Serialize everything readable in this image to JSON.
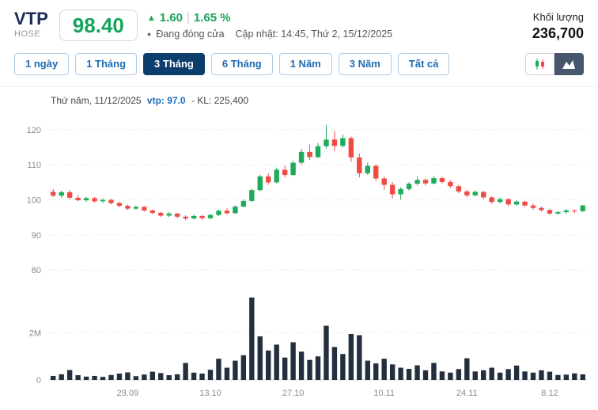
{
  "header": {
    "symbol": "VTP",
    "exchange": "HOSE",
    "price": "98.40",
    "change_arrow": "▲",
    "change_value": "1.60",
    "change_sep": "|",
    "change_percent": "1.65 %",
    "status_dot": "●",
    "status_text": "Đang đóng cửa",
    "updated_text": "Cập nhật: 14:45, Thứ 2, 15/12/2025",
    "volume_label": "Khối lượng",
    "volume_value": "236,700"
  },
  "tabs": [
    {
      "label": "1 ngày",
      "active": false
    },
    {
      "label": "1 Tháng",
      "active": false
    },
    {
      "label": "3 Tháng",
      "active": true
    },
    {
      "label": "6 Tháng",
      "active": false
    },
    {
      "label": "1 Năm",
      "active": false
    },
    {
      "label": "3 Năm",
      "active": false
    },
    {
      "label": "Tất cả",
      "active": false
    }
  ],
  "chart_toggles": {
    "candlestick_icon": "candlestick-icon",
    "area_icon": "area-chart-icon",
    "active": "area"
  },
  "tooltip": {
    "date": "Thứ năm, 11/12/2025",
    "price": "vtp: 97.0",
    "volume": "- KL: 225,400"
  },
  "colors": {
    "up_green": "#1fab5c",
    "down_red": "#ee4b45",
    "price_green": "#17a45a",
    "tab_active_bg": "#0d3d6d",
    "tab_text_blue": "#1e6cb5",
    "navy_text": "#1a2c56",
    "volume_bar": "#232e3f"
  },
  "chart_data": {
    "type": "candlestick+volume",
    "title": "VTP 3-month price and volume",
    "x_tick_labels": [
      {
        "i": 9,
        "label": "29.09"
      },
      {
        "i": 19,
        "label": "13.10"
      },
      {
        "i": 29,
        "label": "27.10"
      },
      {
        "i": 40,
        "label": "10.11"
      },
      {
        "i": 50,
        "label": "24.11"
      },
      {
        "i": 60,
        "label": "8.12"
      }
    ],
    "price_axis": {
      "ticks": [
        80,
        90,
        100,
        110,
        120
      ],
      "min": 78,
      "max": 124.5
    },
    "volume_axis": {
      "ticks": [
        {
          "v": 0,
          "label": "0"
        },
        {
          "v": 2000000,
          "label": "2M"
        }
      ],
      "max": 3900000
    },
    "colors": {
      "up": "#1fab5c",
      "down": "#ee4b45",
      "volume_bar": "#232e3f",
      "grid": "#d8d8d8",
      "axis_text": "#8c8c8c"
    },
    "candles": [
      [
        102.3,
        103.1,
        100.8,
        101.2,
        170000
      ],
      [
        101.2,
        102.6,
        100.6,
        102.2,
        240000
      ],
      [
        102.2,
        102.8,
        100.2,
        100.6,
        420000
      ],
      [
        100.6,
        101.4,
        99.6,
        99.9,
        200000
      ],
      [
        99.9,
        100.9,
        99.4,
        100.5,
        140000
      ],
      [
        100.5,
        100.8,
        99.2,
        99.6,
        170000
      ],
      [
        99.6,
        100.4,
        99.1,
        100.0,
        130000
      ],
      [
        100.0,
        100.3,
        98.7,
        99.1,
        210000
      ],
      [
        99.1,
        99.5,
        97.9,
        98.3,
        270000
      ],
      [
        98.3,
        98.7,
        97.1,
        97.5,
        320000
      ],
      [
        97.5,
        98.4,
        97.2,
        98.0,
        160000
      ],
      [
        98.0,
        98.2,
        96.6,
        97.0,
        230000
      ],
      [
        97.0,
        97.3,
        95.9,
        96.3,
        350000
      ],
      [
        96.3,
        96.6,
        95.1,
        95.5,
        290000
      ],
      [
        95.5,
        96.5,
        95.1,
        96.1,
        200000
      ],
      [
        96.1,
        96.3,
        94.8,
        95.2,
        240000
      ],
      [
        95.2,
        95.6,
        94.2,
        94.7,
        720000
      ],
      [
        94.7,
        95.8,
        94.4,
        95.4,
        310000
      ],
      [
        95.4,
        95.7,
        94.3,
        94.8,
        270000
      ],
      [
        94.8,
        96.0,
        94.5,
        95.7,
        430000
      ],
      [
        95.7,
        97.3,
        95.4,
        96.9,
        900000
      ],
      [
        96.9,
        97.6,
        95.8,
        96.2,
        520000
      ],
      [
        96.2,
        98.5,
        96.0,
        98.1,
        820000
      ],
      [
        98.1,
        100.1,
        97.8,
        99.7,
        1050000
      ],
      [
        99.7,
        103.2,
        99.4,
        102.8,
        3500000
      ],
      [
        102.8,
        107.2,
        102.4,
        106.7,
        1850000
      ],
      [
        106.7,
        107.6,
        104.3,
        105.0,
        1250000
      ],
      [
        105.0,
        109.2,
        104.7,
        108.6,
        1500000
      ],
      [
        108.6,
        109.8,
        106.4,
        107.1,
        950000
      ],
      [
        107.1,
        111.2,
        106.8,
        110.6,
        1600000
      ],
      [
        110.6,
        114.6,
        110.1,
        113.7,
        1200000
      ],
      [
        113.7,
        115.8,
        111.4,
        112.2,
        850000
      ],
      [
        112.2,
        116.2,
        111.9,
        115.3,
        1000000
      ],
      [
        115.3,
        121.4,
        114.6,
        117.2,
        2300000
      ],
      [
        117.2,
        119.6,
        113.9,
        115.4,
        1400000
      ],
      [
        115.4,
        118.6,
        114.9,
        117.6,
        1100000
      ],
      [
        117.6,
        118.1,
        110.9,
        112.1,
        1950000
      ],
      [
        112.1,
        113.2,
        106.4,
        107.6,
        1900000
      ],
      [
        107.6,
        110.6,
        107.1,
        109.7,
        820000
      ],
      [
        109.7,
        110.2,
        105.4,
        106.1,
        700000
      ],
      [
        106.1,
        106.6,
        102.9,
        104.3,
        900000
      ],
      [
        104.3,
        105.1,
        100.4,
        101.6,
        660000
      ],
      [
        101.6,
        103.6,
        100.1,
        103.1,
        520000
      ],
      [
        103.1,
        105.1,
        102.6,
        104.6,
        470000
      ],
      [
        104.6,
        106.6,
        104.1,
        105.7,
        620000
      ],
      [
        105.7,
        106.2,
        104.1,
        104.7,
        410000
      ],
      [
        104.7,
        106.9,
        104.4,
        106.2,
        720000
      ],
      [
        106.2,
        106.6,
        104.7,
        105.1,
        360000
      ],
      [
        105.1,
        105.6,
        103.4,
        103.9,
        310000
      ],
      [
        103.9,
        104.3,
        101.9,
        102.4,
        460000
      ],
      [
        102.4,
        102.9,
        100.7,
        101.3,
        920000
      ],
      [
        101.3,
        102.7,
        101.0,
        102.3,
        360000
      ],
      [
        102.3,
        102.5,
        100.2,
        100.7,
        410000
      ],
      [
        100.7,
        101.1,
        98.9,
        99.4,
        520000
      ],
      [
        99.4,
        100.7,
        99.0,
        100.2,
        310000
      ],
      [
        100.2,
        100.5,
        98.2,
        98.7,
        460000
      ],
      [
        98.7,
        99.9,
        98.3,
        99.5,
        610000
      ],
      [
        99.5,
        99.7,
        97.9,
        98.4,
        360000
      ],
      [
        98.4,
        98.9,
        97.2,
        97.7,
        310000
      ],
      [
        97.7,
        98.1,
        96.6,
        97.1,
        410000
      ],
      [
        97.1,
        97.4,
        95.7,
        96.1,
        350000
      ],
      [
        96.1,
        96.9,
        95.7,
        96.5,
        210000
      ],
      [
        96.5,
        97.4,
        96.0,
        97.0,
        225400
      ],
      [
        97.0,
        97.3,
        96.2,
        96.8,
        280000
      ],
      [
        96.8,
        98.6,
        96.5,
        98.4,
        236700
      ]
    ]
  }
}
